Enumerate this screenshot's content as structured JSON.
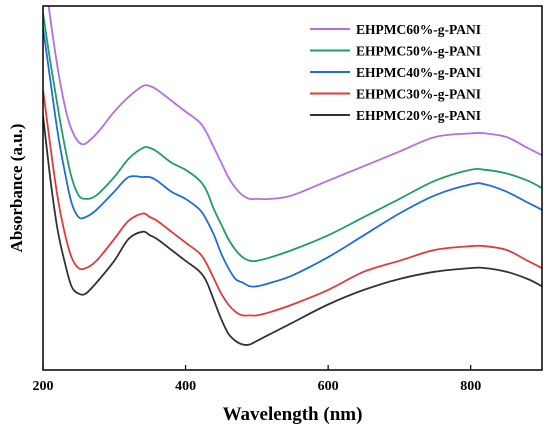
{
  "chart_data": {
    "type": "line",
    "title": "",
    "xlabel": "Wavelength (nm)",
    "ylabel": "Absorbance (a.u.)",
    "xlim": [
      200,
      900
    ],
    "ylim": [
      0,
      1
    ],
    "x_ticks": [
      "200",
      "400",
      "600",
      "800"
    ],
    "x_tick_values": [
      200,
      400,
      600,
      800
    ],
    "y_ticks_shown": false,
    "grid": false,
    "legend_position": "top-right",
    "series": [
      {
        "name": "EHPMC60%-g-PANI",
        "color": "#b46ee0",
        "x": [
          208,
          215,
          225,
          235,
          245,
          255,
          265,
          280,
          300,
          320,
          340,
          350,
          360,
          380,
          400,
          420,
          430,
          440,
          450,
          460,
          470,
          480,
          490,
          500,
          520,
          550,
          600,
          650,
          700,
          750,
          800,
          820,
          850,
          880,
          900
        ],
        "y": [
          1.0,
          0.9,
          0.78,
          0.69,
          0.64,
          0.62,
          0.63,
          0.66,
          0.71,
          0.75,
          0.78,
          0.78,
          0.77,
          0.74,
          0.71,
          0.68,
          0.65,
          0.61,
          0.57,
          0.53,
          0.5,
          0.48,
          0.47,
          0.47,
          0.47,
          0.48,
          0.52,
          0.56,
          0.6,
          0.64,
          0.65,
          0.65,
          0.64,
          0.61,
          0.59
        ]
      },
      {
        "name": "EHPMC50%-g-PANI",
        "color": "#1f9e64",
        "x": [
          200,
          210,
          220,
          230,
          240,
          250,
          260,
          275,
          300,
          320,
          340,
          350,
          360,
          380,
          400,
          420,
          430,
          440,
          450,
          460,
          470,
          480,
          490,
          500,
          520,
          550,
          600,
          650,
          700,
          750,
          800,
          820,
          850,
          880,
          900
        ],
        "y": [
          0.98,
          0.85,
          0.73,
          0.62,
          0.53,
          0.48,
          0.47,
          0.48,
          0.53,
          0.58,
          0.61,
          0.61,
          0.6,
          0.57,
          0.55,
          0.52,
          0.49,
          0.44,
          0.4,
          0.36,
          0.33,
          0.31,
          0.3,
          0.3,
          0.31,
          0.33,
          0.37,
          0.42,
          0.47,
          0.52,
          0.55,
          0.55,
          0.54,
          0.52,
          0.5
        ]
      },
      {
        "name": "EHPMC40%-g-PANI",
        "color": "#1f6fd1",
        "x": [
          200,
          210,
          220,
          230,
          240,
          250,
          260,
          275,
          300,
          320,
          340,
          350,
          360,
          380,
          400,
          420,
          430,
          440,
          450,
          460,
          470,
          480,
          490,
          500,
          520,
          550,
          600,
          650,
          700,
          750,
          800,
          820,
          850,
          880,
          900
        ],
        "y": [
          0.94,
          0.8,
          0.66,
          0.55,
          0.46,
          0.42,
          0.42,
          0.44,
          0.49,
          0.53,
          0.53,
          0.53,
          0.52,
          0.49,
          0.47,
          0.44,
          0.41,
          0.37,
          0.32,
          0.28,
          0.25,
          0.24,
          0.23,
          0.23,
          0.24,
          0.26,
          0.31,
          0.37,
          0.43,
          0.48,
          0.51,
          0.51,
          0.49,
          0.46,
          0.44
        ]
      },
      {
        "name": "EHPMC30%-g-PANI",
        "color": "#e03a3a",
        "x": [
          200,
          210,
          220,
          230,
          240,
          250,
          260,
          275,
          300,
          320,
          340,
          350,
          360,
          380,
          400,
          420,
          430,
          440,
          450,
          460,
          470,
          480,
          490,
          500,
          520,
          550,
          600,
          650,
          700,
          750,
          800,
          820,
          850,
          880,
          900
        ],
        "y": [
          0.77,
          0.62,
          0.48,
          0.38,
          0.31,
          0.28,
          0.28,
          0.3,
          0.36,
          0.41,
          0.43,
          0.42,
          0.41,
          0.38,
          0.35,
          0.32,
          0.29,
          0.25,
          0.21,
          0.18,
          0.16,
          0.15,
          0.15,
          0.15,
          0.16,
          0.18,
          0.22,
          0.27,
          0.3,
          0.33,
          0.34,
          0.34,
          0.33,
          0.3,
          0.28
        ]
      },
      {
        "name": "EHPMC20%-g-PANI",
        "color": "#333333",
        "x": [
          200,
          210,
          220,
          230,
          240,
          250,
          260,
          275,
          300,
          320,
          340,
          350,
          360,
          380,
          400,
          420,
          430,
          440,
          450,
          460,
          470,
          480,
          490,
          500,
          520,
          550,
          600,
          650,
          700,
          750,
          800,
          820,
          850,
          880,
          900
        ],
        "y": [
          0.7,
          0.53,
          0.39,
          0.3,
          0.23,
          0.21,
          0.21,
          0.24,
          0.3,
          0.36,
          0.38,
          0.37,
          0.36,
          0.33,
          0.3,
          0.27,
          0.24,
          0.19,
          0.14,
          0.1,
          0.08,
          0.07,
          0.07,
          0.08,
          0.1,
          0.13,
          0.18,
          0.22,
          0.25,
          0.27,
          0.28,
          0.28,
          0.27,
          0.25,
          0.23
        ]
      }
    ]
  }
}
